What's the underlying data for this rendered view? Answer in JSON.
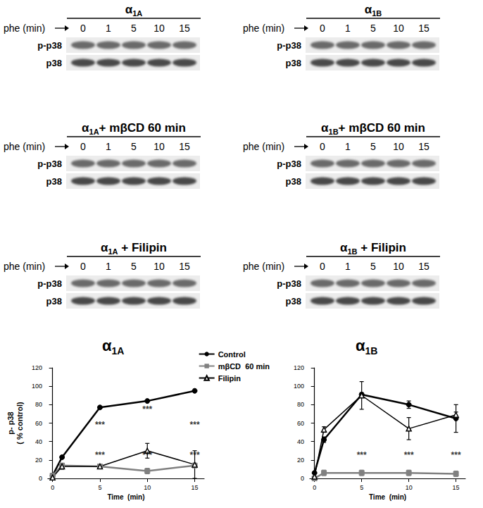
{
  "blots": [
    {
      "title": "α1A",
      "time_label": "phe (min)",
      "times": [
        "0",
        "1",
        "5",
        "10",
        "15"
      ],
      "rows": [
        "p-p38",
        "p38"
      ]
    },
    {
      "title": "α1B",
      "time_label": "phe (min)",
      "times": [
        "0",
        "1",
        "5",
        "10",
        "15"
      ],
      "rows": [
        "p-p38",
        "p38"
      ]
    },
    {
      "title": "α1A+ mβCD 60 min",
      "time_label": "phe (min)",
      "times": [
        "0",
        "1",
        "5",
        "10",
        "15"
      ],
      "rows": [
        "p-p38",
        "p38"
      ]
    },
    {
      "title": "α1B+ mβCD 60 min",
      "time_label": "phe (min)",
      "times": [
        "0",
        "1",
        "5",
        "10",
        "15"
      ],
      "rows": [
        "p-p38",
        "p38"
      ]
    },
    {
      "title": "α1A + Filipin",
      "time_label": "phe (min)",
      "times": [
        "0",
        "1",
        "5",
        "10",
        "15"
      ],
      "rows": [
        "p-p38",
        "p38"
      ]
    },
    {
      "title": "α1B + Filipin",
      "time_label": "phe (min)",
      "times": [
        "0",
        "1",
        "5",
        "10",
        "15"
      ],
      "rows": [
        "p-p38",
        "p38"
      ]
    }
  ],
  "chart_data": [
    {
      "type": "line",
      "title": "α1A",
      "xlabel": "Time  (min)",
      "ylabel": "p- p38\n( % control)",
      "xlim": [
        -0.5,
        16
      ],
      "xticks": [
        0,
        5,
        10,
        15
      ],
      "ylim": [
        0,
        120
      ],
      "yticks": [
        0,
        20,
        40,
        60,
        80,
        100,
        120
      ],
      "grid": false,
      "legend": "upper right",
      "x": [
        0,
        1,
        5,
        10,
        15
      ],
      "series": [
        {
          "name": "Control",
          "color": "#000000",
          "marker": "circle",
          "values": [
            3,
            23,
            77,
            84,
            95
          ]
        },
        {
          "name": "mβCD  60 min",
          "color": "#808080",
          "marker": "square",
          "values": [
            3,
            14,
            13,
            8,
            14
          ],
          "errors": [
            1,
            2,
            2,
            3,
            2
          ]
        },
        {
          "name": "Filipin",
          "color": "#000000",
          "marker": "triangle-open",
          "values": [
            1,
            13,
            13,
            30,
            15
          ],
          "errors": [
            0,
            3,
            2,
            8,
            15
          ]
        }
      ],
      "annotations": [
        {
          "text": "***",
          "x": 5,
          "y": 58
        },
        {
          "text": "***",
          "x": 10,
          "y": 75
        },
        {
          "text": "***",
          "x": 15,
          "y": 58
        },
        {
          "text": "***",
          "x": 5,
          "y": 25
        },
        {
          "text": "***",
          "x": 10,
          "y": 25
        },
        {
          "text": "***",
          "x": 15,
          "y": 25
        }
      ]
    },
    {
      "type": "line",
      "title": "α1B",
      "xlabel": "Time  (min)",
      "xlim": [
        -0.5,
        16
      ],
      "xticks": [
        0,
        5,
        10,
        15
      ],
      "ylim": [
        0,
        120
      ],
      "yticks": [
        0,
        20,
        40,
        60,
        80,
        100,
        120
      ],
      "grid": false,
      "x": [
        0,
        1,
        5,
        10,
        15
      ],
      "series": [
        {
          "name": "Control",
          "color": "#000000",
          "marker": "circle",
          "values": [
            6,
            42,
            91,
            80,
            65
          ],
          "errors": [
            0,
            3,
            2,
            4,
            15
          ]
        },
        {
          "name": "mβCD  60 min",
          "color": "#808080",
          "marker": "square",
          "values": [
            0,
            6,
            6,
            6,
            5
          ],
          "errors": [
            0,
            3,
            3,
            3,
            3
          ]
        },
        {
          "name": "Filipin",
          "color": "#000000",
          "marker": "triangle-open",
          "values": [
            2,
            53,
            90,
            54,
            69
          ],
          "errors": [
            0,
            3,
            15,
            12,
            3
          ]
        }
      ],
      "annotations": [
        {
          "text": "***",
          "x": 5,
          "y": 25
        },
        {
          "text": "***",
          "x": 10,
          "y": 25
        },
        {
          "text": "***",
          "x": 15,
          "y": 25
        }
      ]
    }
  ]
}
